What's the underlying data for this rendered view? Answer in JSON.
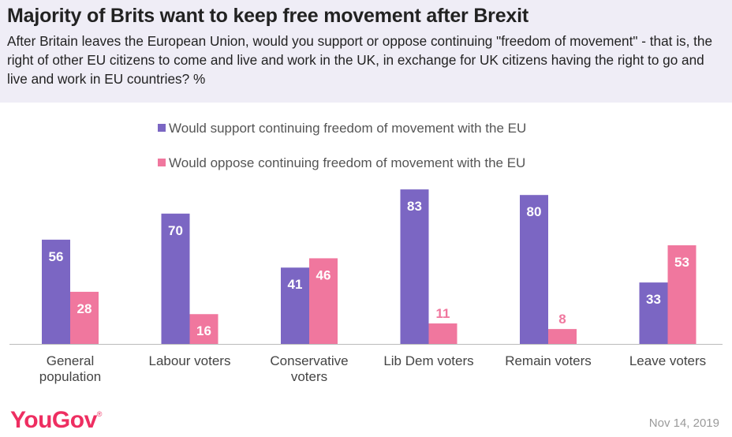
{
  "header": {
    "title": "Majority of Brits want to keep free movement after Brexit",
    "subtitle": "After Britain leaves the European Union, would you support or oppose continuing \"freedom of movement\" - that is, the right of other EU citizens to come and live and work in the UK, in exchange for UK citizens having the right to go and live and work in EU countries? %"
  },
  "footer": {
    "brand": "YouGov",
    "brand_mark": "®",
    "date": "Nov 14, 2019"
  },
  "colors": {
    "support": "#7b66c3",
    "oppose": "#f0779e",
    "label_on_bar": "#ffffff",
    "label_above_bar": "#f0779e",
    "axis": "#bbbbbb"
  },
  "chart_data": {
    "type": "bar",
    "title": "Majority of Brits want to keep free movement after Brexit",
    "xlabel": "",
    "ylabel": "%",
    "ylim": [
      0,
      100
    ],
    "grid": false,
    "legend_position": "top-center",
    "categories": [
      [
        "General",
        "population"
      ],
      [
        "Labour voters"
      ],
      [
        "Conservative",
        "voters"
      ],
      [
        "Lib Dem voters"
      ],
      [
        "Remain voters"
      ],
      [
        "Leave voters"
      ]
    ],
    "series": [
      {
        "name": "Would support continuing freedom of movement with the EU",
        "key": "support",
        "values": [
          56,
          70,
          41,
          83,
          80,
          33
        ]
      },
      {
        "name": "Would oppose continuing freedom of movement with the EU",
        "key": "oppose",
        "values": [
          28,
          16,
          46,
          11,
          8,
          53
        ]
      }
    ]
  }
}
